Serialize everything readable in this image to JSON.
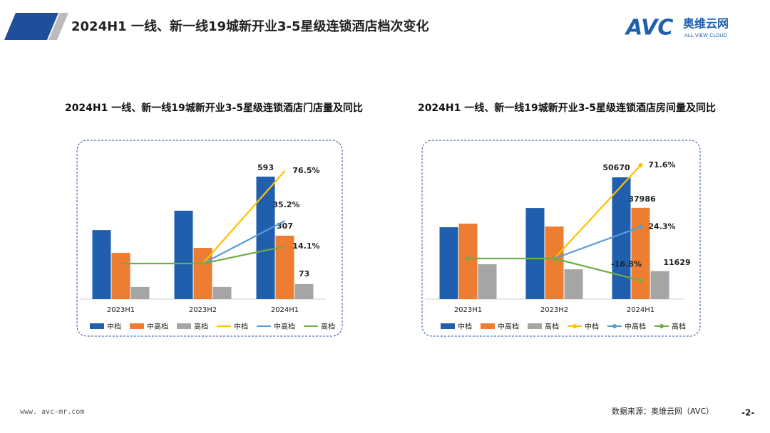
{
  "header": {
    "title": "2024H1 一线、新一线19城新开业3-5星级连锁酒店档次变化",
    "logo": "AVC",
    "brand": "奥维云网",
    "brand_en": "ALL VIEW CLOUD"
  },
  "footer": {
    "url": "www. avc-mr.com",
    "source": "数据来源：奥维云网（AVC）",
    "page": "-2-"
  },
  "chart_data": [
    {
      "type": "combo",
      "title": "2024H1 一线、新一线19城新开业3-5星级连锁酒店门店量及同比",
      "markers": false,
      "categories": [
        "2023H1",
        "2023H2",
        "2024H1"
      ],
      "series": [
        {
          "name": "中档",
          "type": "bar",
          "color": "#1f5fae",
          "values": [
            334,
            428,
            593
          ],
          "value_labels": [
            null,
            null,
            "593"
          ]
        },
        {
          "name": "中高档",
          "type": "bar",
          "color": "#ed7d31",
          "values": [
            224,
            248,
            307
          ],
          "value_labels": [
            null,
            null,
            "307"
          ]
        },
        {
          "name": "高档",
          "type": "bar",
          "color": "#a5a5a5",
          "values": [
            59,
            59,
            73
          ],
          "value_labels": [
            null,
            null,
            "73"
          ]
        },
        {
          "name": "中档",
          "type": "line",
          "axis": "y2",
          "color": "#ffc000",
          "values": [
            null,
            0,
            76.5
          ],
          "value_labels": [
            null,
            null,
            "76.5%"
          ]
        },
        {
          "name": "中高档",
          "type": "line",
          "axis": "y2",
          "color": "#5b9bd5",
          "values": [
            null,
            0,
            35.2
          ],
          "value_labels": [
            null,
            null,
            "35.2%"
          ]
        },
        {
          "name": "高档",
          "type": "line",
          "axis": "y2",
          "color": "#70ad47",
          "values": [
            0,
            0,
            14.1
          ],
          "value_labels": [
            null,
            null,
            "14.1%"
          ]
        }
      ]
    },
    {
      "type": "combo",
      "title": "2024H1 一线、新一线19城新开业3-5星级连锁酒店房间量及同比",
      "markers": true,
      "categories": [
        "2023H1",
        "2023H2",
        "2024H1"
      ],
      "series": [
        {
          "name": "中档",
          "type": "bar",
          "color": "#1f5fae",
          "values": [
            29900,
            37900,
            50670
          ],
          "value_labels": [
            null,
            null,
            "50670"
          ]
        },
        {
          "name": "中高档",
          "type": "bar",
          "color": "#ed7d31",
          "values": [
            31400,
            30200,
            37986
          ],
          "value_labels": [
            null,
            null,
            "37986"
          ]
        },
        {
          "name": "高档",
          "type": "bar",
          "color": "#a5a5a5",
          "values": [
            14500,
            12400,
            11629
          ],
          "value_labels": [
            null,
            null,
            "11629"
          ]
        },
        {
          "name": "中档",
          "type": "line",
          "axis": "y2",
          "color": "#ffc000",
          "values": [
            null,
            0,
            71.6
          ],
          "value_labels": [
            null,
            null,
            "71.6%"
          ]
        },
        {
          "name": "中高档",
          "type": "line",
          "axis": "y2",
          "color": "#5b9bd5",
          "values": [
            null,
            0,
            24.3
          ],
          "value_labels": [
            null,
            null,
            "24.3%"
          ]
        },
        {
          "name": "高档",
          "type": "line",
          "axis": "y2",
          "color": "#70ad47",
          "values": [
            0,
            0,
            -16.8
          ],
          "value_labels": [
            null,
            null,
            "-16.8%"
          ]
        }
      ]
    }
  ]
}
